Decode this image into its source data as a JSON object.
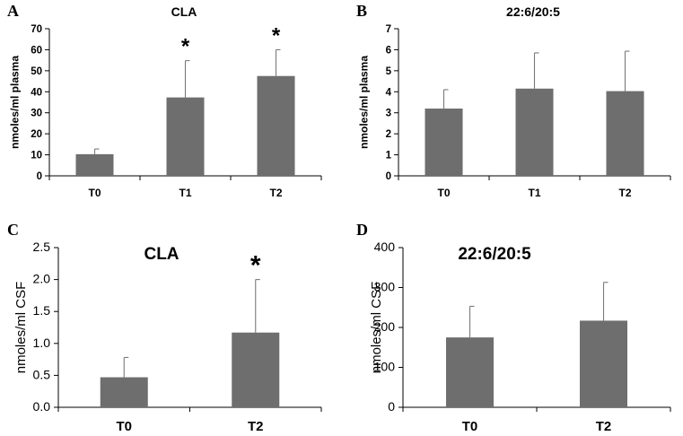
{
  "colors": {
    "bar": "#6e6e6e",
    "error": "#7a7a7a",
    "axis": "#000000"
  },
  "chart_data": [
    {
      "panel": "A",
      "type": "bar",
      "title": "CLA",
      "ylabel": "nmoles/ml plasma",
      "xlabel": "",
      "categories": [
        "T0",
        "T1",
        "T2"
      ],
      "values": [
        10.3,
        37.3,
        47.5
      ],
      "errors": [
        2.5,
        17.5,
        12.5
      ],
      "significant": [
        false,
        true,
        true
      ],
      "ylim": [
        0,
        70
      ],
      "yticks": [
        "0",
        "10",
        "20",
        "30",
        "40",
        "50",
        "60",
        "70"
      ],
      "grid": false
    },
    {
      "panel": "B",
      "type": "bar",
      "title": "22:6/20:5",
      "ylabel": "nmoles/ml plasma",
      "xlabel": "",
      "categories": [
        "T0",
        "T1",
        "T2"
      ],
      "values": [
        3.2,
        4.15,
        4.03
      ],
      "errors": [
        0.9,
        1.7,
        1.9
      ],
      "significant": [
        false,
        false,
        false
      ],
      "ylim": [
        0,
        7
      ],
      "yticks": [
        "0",
        "1",
        "2",
        "3",
        "4",
        "5",
        "6",
        "7"
      ],
      "grid": false
    },
    {
      "panel": "C",
      "type": "bar",
      "title": "CLA",
      "ylabel": "nmoles/ml CSF",
      "xlabel": "",
      "categories": [
        "T0",
        "T2"
      ],
      "values": [
        0.47,
        1.17
      ],
      "errors": [
        0.31,
        0.83
      ],
      "significant": [
        false,
        true
      ],
      "ylim": [
        0,
        2.5
      ],
      "yticks": [
        "0.0",
        "0.5",
        "1.0",
        "1.5",
        "2.0",
        "2.5"
      ],
      "grid": false
    },
    {
      "panel": "D",
      "type": "bar",
      "title": "22:6/20:5",
      "ylabel": "nmoles/ml CSF",
      "xlabel": "",
      "categories": [
        "T0",
        "T2"
      ],
      "values": [
        175,
        217
      ],
      "errors": [
        78,
        96
      ],
      "significant": [
        false,
        false
      ],
      "ylim": [
        0,
        400
      ],
      "yticks": [
        "0",
        "100",
        "200",
        "300",
        "400"
      ],
      "grid": false
    }
  ],
  "asterisk": "*"
}
